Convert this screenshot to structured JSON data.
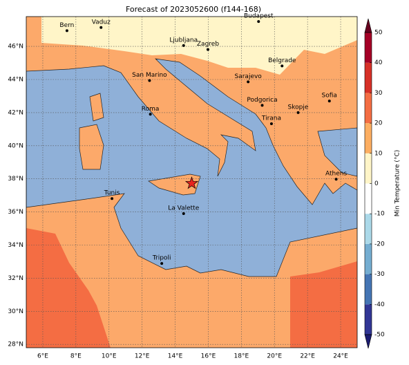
{
  "title": "Forecast of 2023052600 (f144-168)",
  "map": {
    "xlim": [
      5,
      25
    ],
    "ylim": [
      27.8,
      47.8
    ],
    "xticks": [
      {
        "value": 6,
        "label": "6°E"
      },
      {
        "value": 8,
        "label": "8°E"
      },
      {
        "value": 10,
        "label": "10°E"
      },
      {
        "value": 12,
        "label": "12°E"
      },
      {
        "value": 14,
        "label": "14°E"
      },
      {
        "value": 16,
        "label": "16°E"
      },
      {
        "value": 18,
        "label": "18°E"
      },
      {
        "value": 20,
        "label": "20°E"
      },
      {
        "value": 22,
        "label": "22°E"
      },
      {
        "value": 24,
        "label": "24°E"
      }
    ],
    "yticks": [
      {
        "value": 28,
        "label": "28°N"
      },
      {
        "value": 30,
        "label": "30°N"
      },
      {
        "value": 32,
        "label": "32°N"
      },
      {
        "value": 34,
        "label": "34°N"
      },
      {
        "value": 36,
        "label": "36°N"
      },
      {
        "value": 38,
        "label": "38°N"
      },
      {
        "value": 40,
        "label": "40°N"
      },
      {
        "value": 42,
        "label": "42°N"
      },
      {
        "value": 44,
        "label": "44°N"
      },
      {
        "value": 46,
        "label": "46°N"
      }
    ],
    "cities": [
      {
        "name": "Bern",
        "lon": 7.46,
        "lat": 46.95
      },
      {
        "name": "Vaduz",
        "lon": 9.52,
        "lat": 47.14
      },
      {
        "name": "Budapest",
        "lon": 19.04,
        "lat": 47.5
      },
      {
        "name": "Ljubljana",
        "lon": 14.51,
        "lat": 46.05
      },
      {
        "name": "Zagreb",
        "lon": 15.98,
        "lat": 45.81
      },
      {
        "name": "Belgrade",
        "lon": 20.46,
        "lat": 44.82
      },
      {
        "name": "Sarajevo",
        "lon": 18.41,
        "lat": 43.86
      },
      {
        "name": "San Marino",
        "lon": 12.45,
        "lat": 43.94
      },
      {
        "name": "Sofia",
        "lon": 23.32,
        "lat": 42.7
      },
      {
        "name": "Podgorica",
        "lon": 19.26,
        "lat": 42.44
      },
      {
        "name": "Skopje",
        "lon": 21.43,
        "lat": 42.0
      },
      {
        "name": "Roma",
        "lon": 12.5,
        "lat": 41.9
      },
      {
        "name": "Tirana",
        "lon": 19.82,
        "lat": 41.33
      },
      {
        "name": "Athens",
        "lon": 23.73,
        "lat": 37.98
      },
      {
        "name": "Tunis",
        "lon": 10.18,
        "lat": 36.81
      },
      {
        "name": "La Valette",
        "lon": 14.51,
        "lat": 35.9
      },
      {
        "name": "Tripoli",
        "lon": 13.19,
        "lat": 32.89
      }
    ],
    "marker": {
      "lon": 15.0,
      "lat": 37.73,
      "color": "#e8231f"
    }
  },
  "colorbar": {
    "label": "Min Temperature (°C)",
    "lim": [
      -50,
      50
    ],
    "ticks": [
      -50,
      -40,
      -30,
      -20,
      -10,
      0,
      10,
      20,
      30,
      40,
      50
    ],
    "colors": [
      "#313695",
      "#4575b4",
      "#74add1",
      "#abd9e9",
      "#ffffff",
      "#fff5c8",
      "#fdae61",
      "#f46d43",
      "#d73027",
      "#a50026"
    ],
    "under": "#1b1b70",
    "over": "#67001f"
  }
}
